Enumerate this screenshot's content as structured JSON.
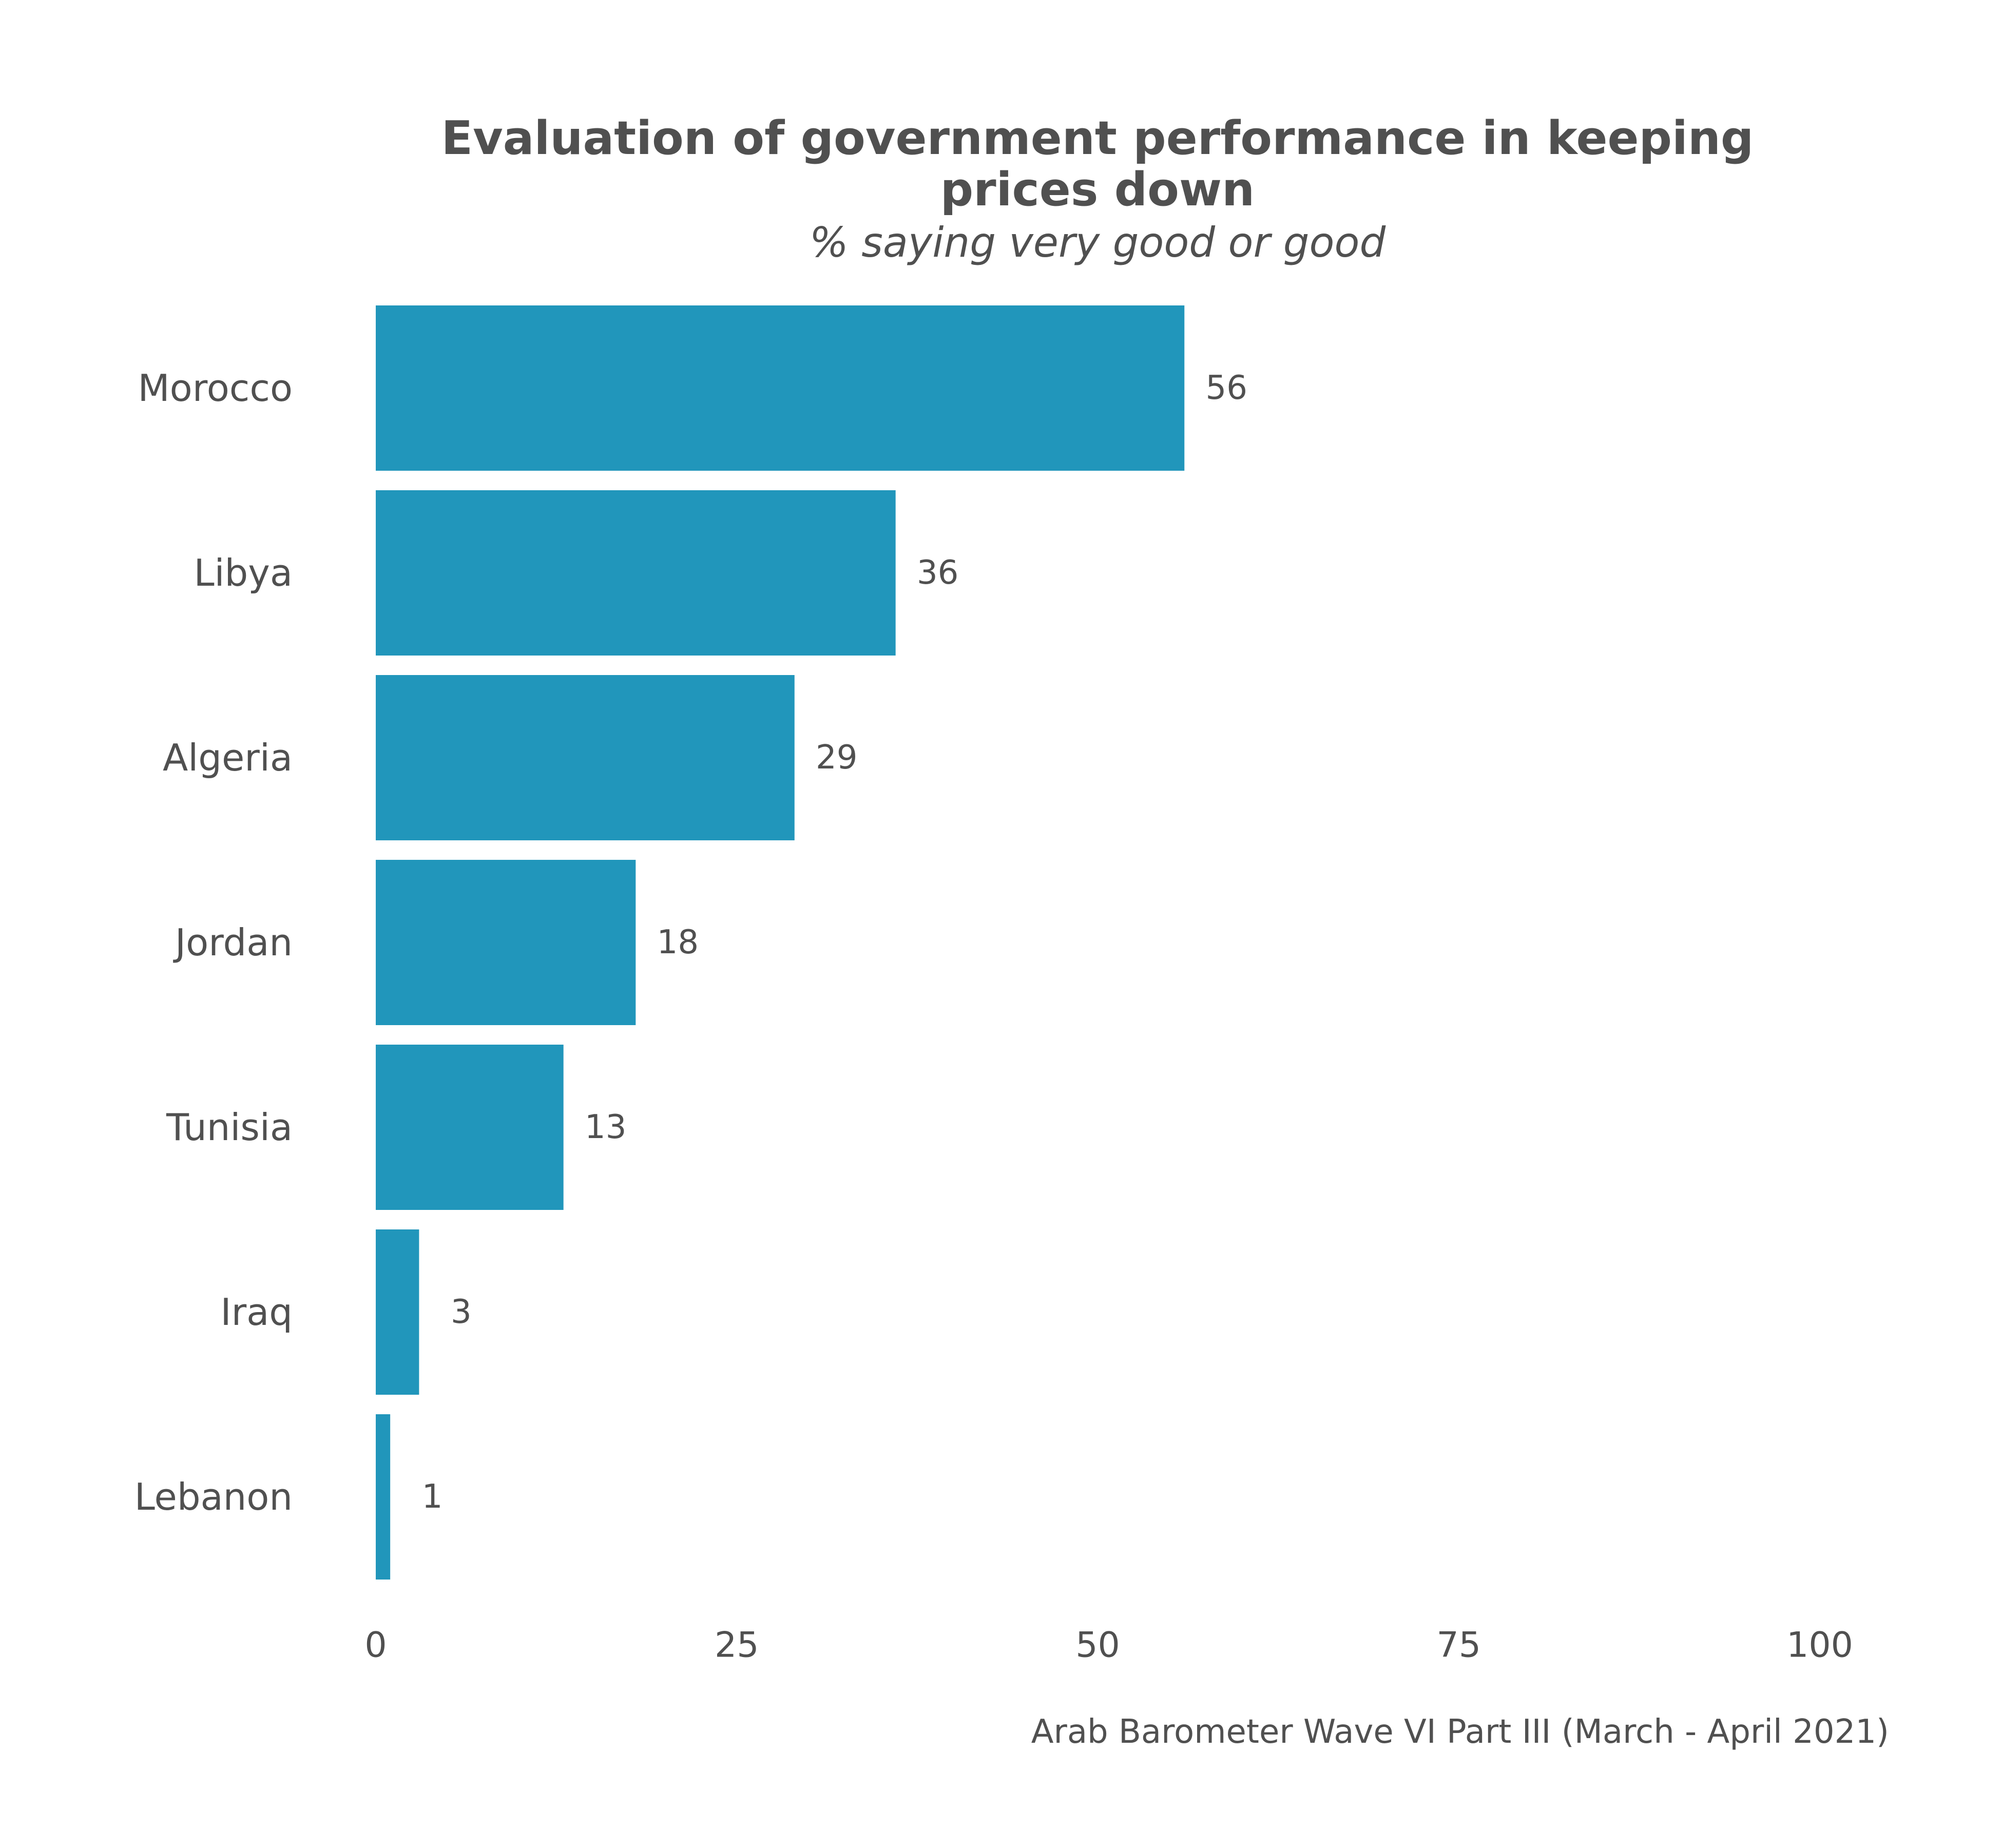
{
  "chart_data": {
    "type": "bar",
    "orientation": "horizontal",
    "title_lines": [
      "Evaluation of government performance in keeping",
      "prices down"
    ],
    "subtitle": "% saying very good or good",
    "caption": "Arab Barometer Wave VI Part III (March - April 2021)",
    "categories": [
      "Morocco",
      "Libya",
      "Algeria",
      "Jordan",
      "Tunisia",
      "Iraq",
      "Lebanon"
    ],
    "values": [
      56,
      36,
      29,
      18,
      13,
      3,
      1
    ],
    "value_labels": [
      "56",
      "36",
      "29",
      "18",
      "13",
      "3",
      "1"
    ],
    "xlim": [
      0,
      100
    ],
    "xticks": [
      0,
      25,
      50,
      75,
      100
    ],
    "xtick_labels": [
      "0",
      "25",
      "50",
      "75",
      "100"
    ],
    "xlabel": "",
    "ylabel": "",
    "grid": false,
    "legend": "none",
    "bar_color": "#2196BB"
  }
}
